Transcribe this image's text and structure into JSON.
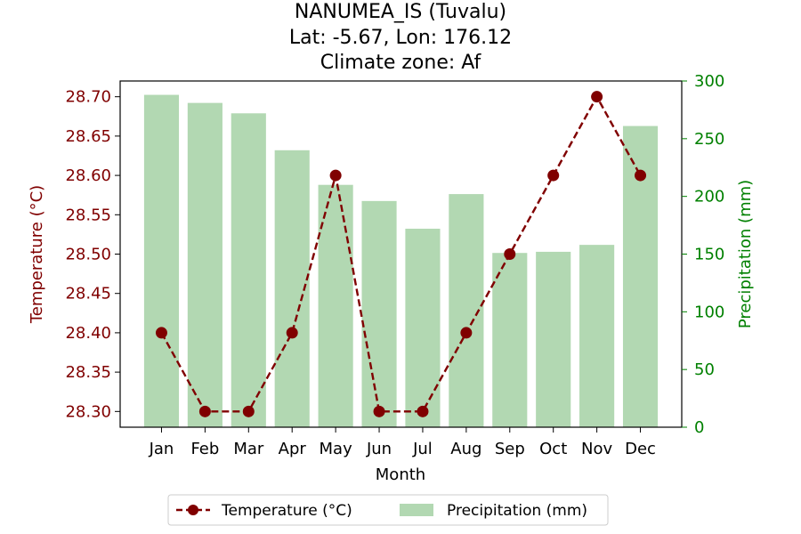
{
  "chart_data": {
    "type": "bar+line",
    "title_lines": [
      "NANUMEA_IS (Tuvalu)",
      "Lat: -5.67, Lon: 176.12",
      "Climate zone: Af"
    ],
    "categories": [
      "Jan",
      "Feb",
      "Mar",
      "Apr",
      "May",
      "Jun",
      "Jul",
      "Aug",
      "Sep",
      "Oct",
      "Nov",
      "Dec"
    ],
    "xlabel": "Month",
    "y_left": {
      "label": "Temperature (°C)",
      "lim": [
        28.28,
        28.72
      ],
      "ticks": [
        "28.30",
        "28.35",
        "28.40",
        "28.45",
        "28.50",
        "28.55",
        "28.60",
        "28.65",
        "28.70"
      ],
      "color": "#800000"
    },
    "y_right": {
      "label": "Precipitation (mm)",
      "lim": [
        0,
        300
      ],
      "ticks": [
        "0",
        "50",
        "100",
        "150",
        "200",
        "250",
        "300"
      ],
      "color": "#008000"
    },
    "series": [
      {
        "name": "Temperature (°C)",
        "kind": "line",
        "axis": "left",
        "style": "dashed, circle markers",
        "color": "#800000",
        "values": [
          28.4,
          28.3,
          28.3,
          28.4,
          28.6,
          28.3,
          28.3,
          28.4,
          28.5,
          28.6,
          28.7,
          28.6
        ]
      },
      {
        "name": "Precipitation (mm)",
        "kind": "bar",
        "axis": "right",
        "color": "#b2d8b2",
        "values": [
          288,
          281,
          272,
          240,
          210,
          196,
          172,
          202,
          151,
          152,
          158,
          261
        ]
      }
    ],
    "legend_position": "bottom-center",
    "grid": false
  }
}
